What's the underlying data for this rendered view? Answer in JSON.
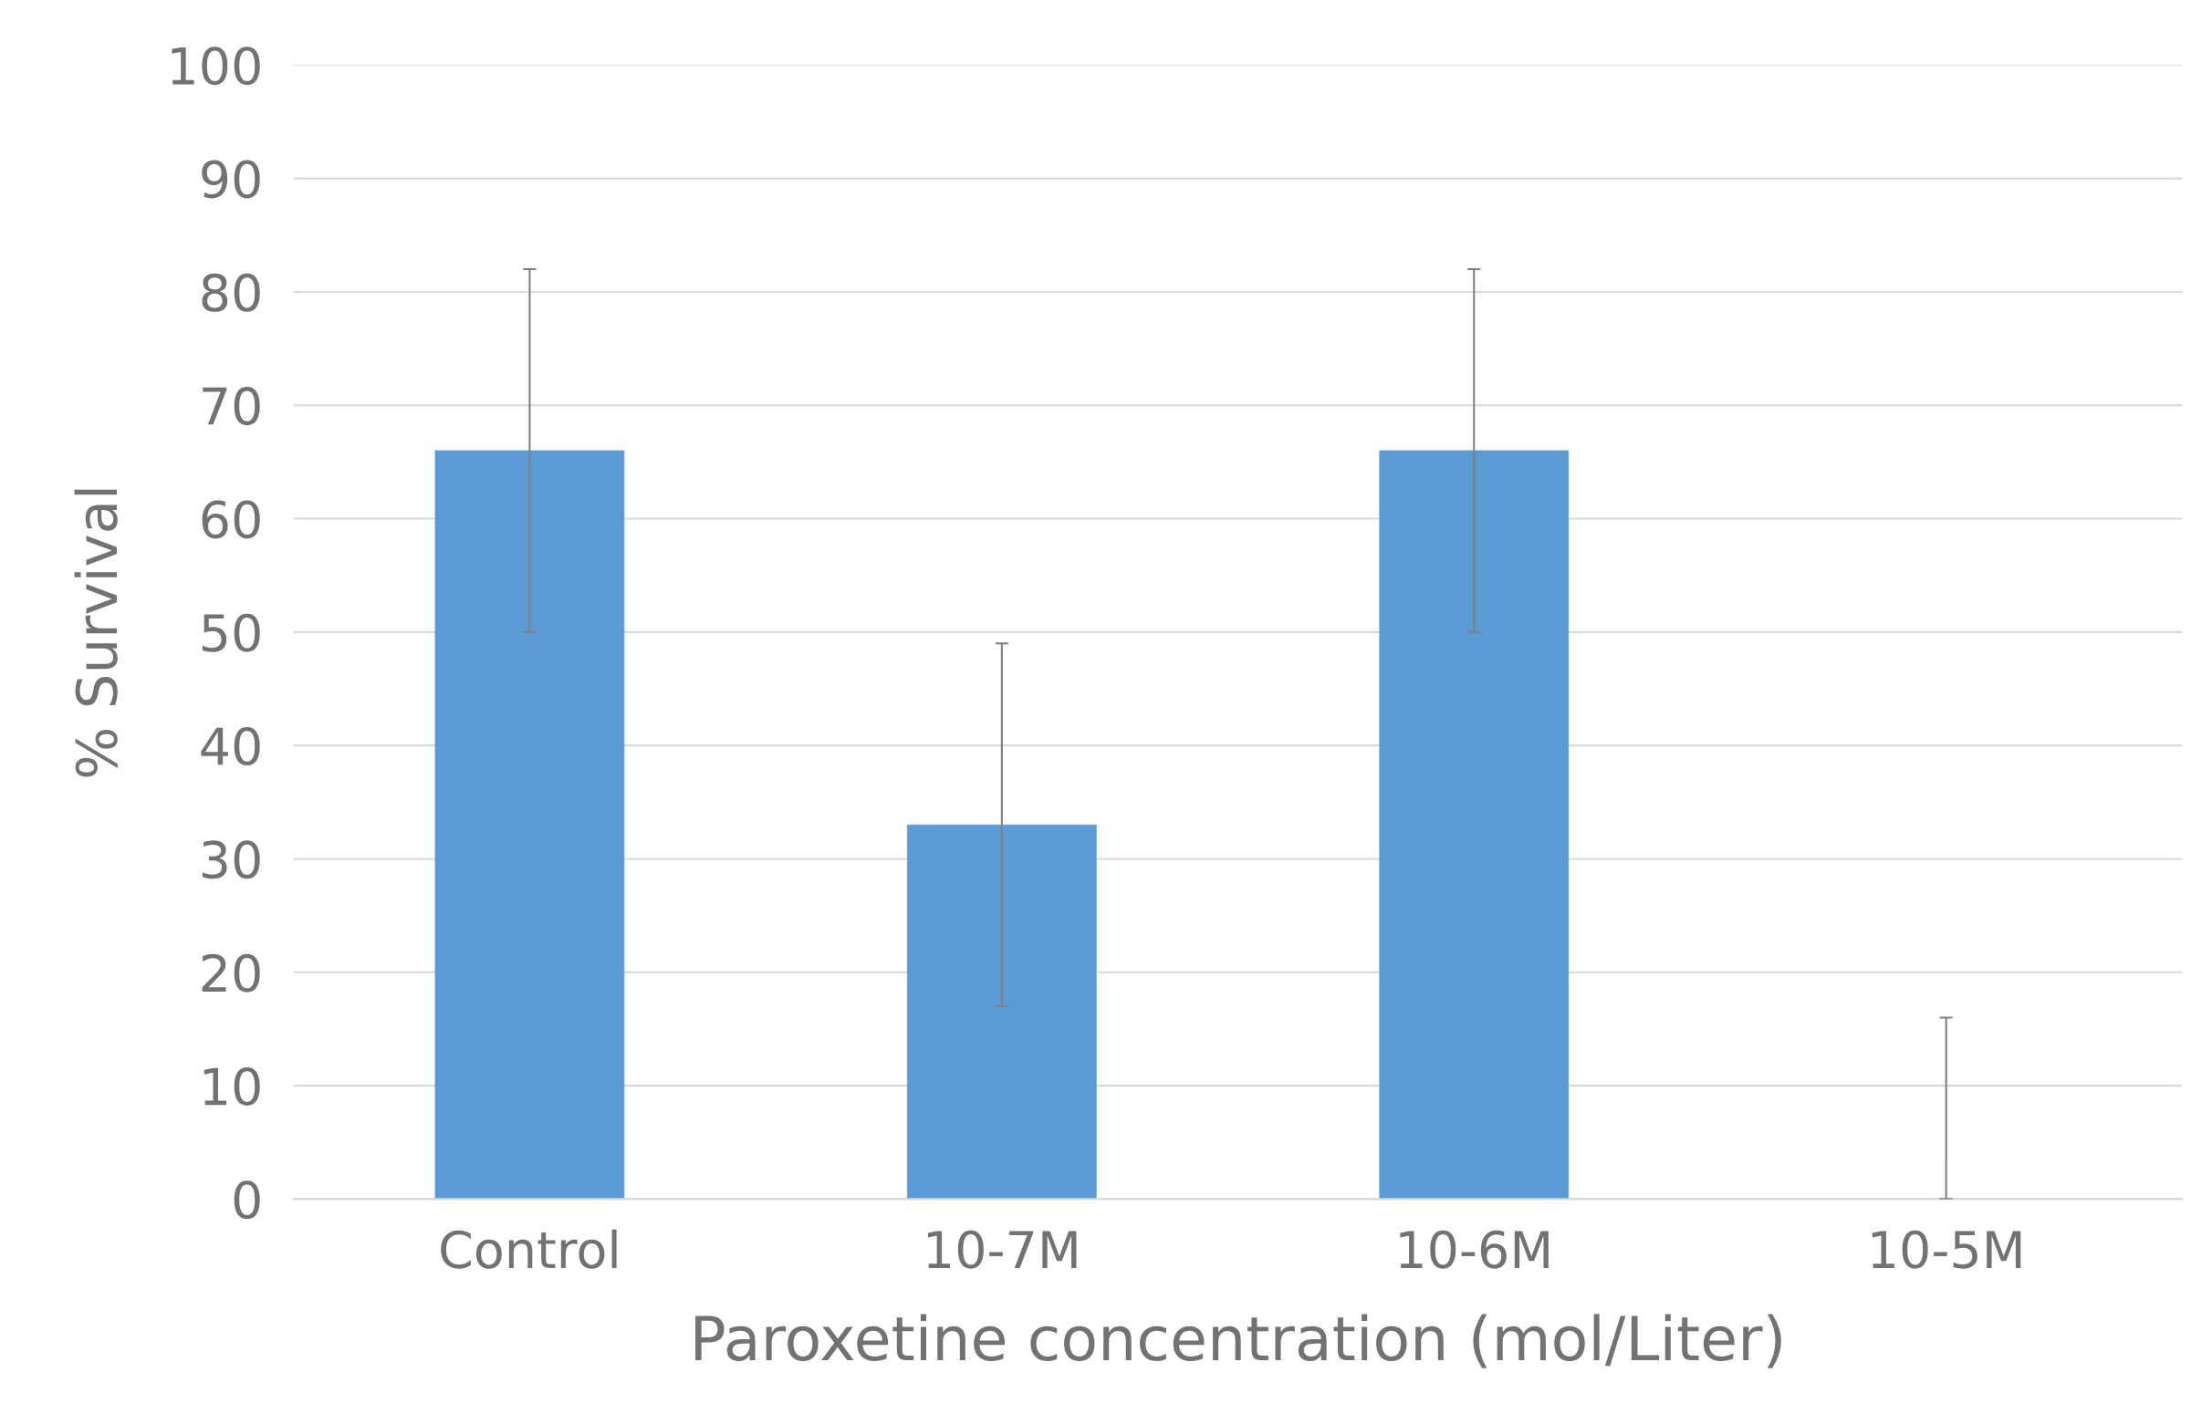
{
  "chart_data": {
    "type": "bar",
    "xlabel": "Paroxetine concentration (mol/Liter)",
    "ylabel": "% Survival",
    "categories": [
      "Control",
      "10-7M",
      "10-6M",
      "10-5M"
    ],
    "values": [
      66,
      33,
      66,
      0
    ],
    "errors": [
      16,
      16,
      16,
      [
        0,
        16
      ]
    ],
    "color": "#5b9bd5",
    "ylim": [
      0,
      100
    ],
    "yticks": [
      0,
      10,
      20,
      30,
      40,
      50,
      60,
      70,
      80,
      90,
      100
    ],
    "grid": "y",
    "legend": false
  }
}
